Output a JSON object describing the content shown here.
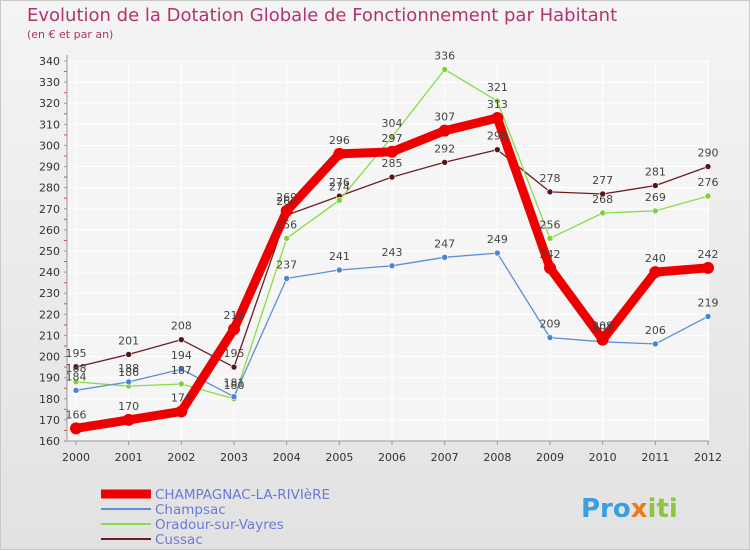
{
  "title": "Evolution de la Dotation Globale de Fonctionnement par Habitant",
  "subtitle": "(en € et par an)",
  "logo": {
    "part1": "Pro",
    "part2": "x",
    "part3": "iti"
  },
  "chart_data": {
    "type": "line",
    "title": "Evolution de la Dotation Globale de Fonctionnement par Habitant",
    "ylabel": "(en € et par an)",
    "x": [
      "2000",
      "2001",
      "2002",
      "2003",
      "2004",
      "2005",
      "2006",
      "2007",
      "2008",
      "2009",
      "2010",
      "2011",
      "2012"
    ],
    "ylim": [
      160,
      340
    ],
    "yticks": [
      160,
      170,
      180,
      190,
      200,
      210,
      220,
      230,
      240,
      250,
      260,
      270,
      280,
      290,
      300,
      310,
      320,
      330,
      340
    ],
    "grid": true,
    "legend": "bottom-left",
    "series": [
      {
        "name": "Cussac",
        "color": "#6b1e22",
        "dot": "#5a1418",
        "values": [
          195,
          201,
          208,
          195,
          267,
          276,
          285,
          292,
          298,
          278,
          277,
          281,
          290
        ]
      },
      {
        "name": "Oradour-sur-Vayres",
        "color": "#88dd44",
        "dot": "#7ed33a",
        "values": [
          188,
          186,
          187,
          180,
          256,
          274,
          304,
          336,
          321,
          256,
          268,
          269,
          276
        ]
      },
      {
        "name": "Champsac",
        "color": "#5b8fd6",
        "dot": "#4a84d9",
        "values": [
          184,
          188,
          194,
          181,
          237,
          241,
          243,
          247,
          249,
          209,
          207,
          206,
          219
        ]
      },
      {
        "name": "CHAMPAGNAC-LA-RIVIèRE",
        "color": "#ee0000",
        "dot": "#ee0000",
        "values": [
          166,
          170,
          174,
          213,
          269,
          296,
          297,
          307,
          313,
          242,
          208,
          240,
          242
        ],
        "bold": true
      }
    ],
    "legend_order": [
      "CHAMPAGNAC-LA-RIVIèRE",
      "Champsac",
      "Oradour-sur-Vayres",
      "Cussac"
    ]
  }
}
